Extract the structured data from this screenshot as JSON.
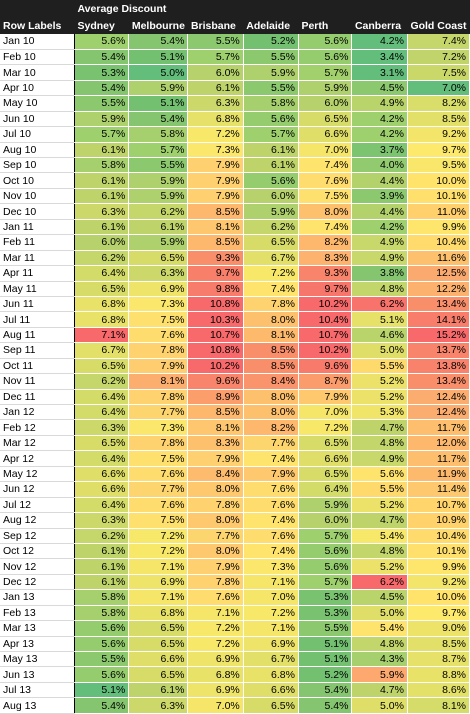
{
  "table": {
    "title": "Average Discount",
    "row_header": "Row Labels",
    "columns": [
      "Sydney",
      "Melbourne",
      "Brisbane",
      "Adelaide",
      "Perth",
      "Canberra",
      "Gold Coast"
    ],
    "rows": [
      {
        "label": "Jan 10",
        "values": [
          "5.6%",
          "5.4%",
          "5.5%",
          "5.2%",
          "5.6%",
          "4.2%",
          "7.4%"
        ],
        "colors": [
          "#9ed06e",
          "#86c56f",
          "#8bc86e",
          "#72c070",
          "#95cc6e",
          "#63be7b",
          "#c5d66a"
        ]
      },
      {
        "label": "Feb 10",
        "values": [
          "5.4%",
          "5.1%",
          "5.7%",
          "5.5%",
          "5.6%",
          "3.4%",
          "7.2%"
        ],
        "colors": [
          "#86c56f",
          "#72c070",
          "#9ed06e",
          "#8bc86e",
          "#95cc6e",
          "#63be7b",
          "#c0d46b"
        ]
      },
      {
        "label": "Mar 10",
        "values": [
          "5.3%",
          "5.0%",
          "6.0%",
          "5.9%",
          "5.7%",
          "3.1%",
          "7.5%"
        ],
        "colors": [
          "#79c270",
          "#63be7b",
          "#b7d26c",
          "#aed06d",
          "#a2d06d",
          "#63be7b",
          "#cad86a"
        ]
      },
      {
        "label": "Apr 10",
        "values": [
          "5.4%",
          "5.9%",
          "6.1%",
          "5.5%",
          "5.9%",
          "4.5%",
          "7.0%"
        ],
        "colors": [
          "#86c56f",
          "#aed06d",
          "#bed46b",
          "#8bc86e",
          "#aed06d",
          "#8bc86e",
          "#63be7b"
        ]
      },
      {
        "label": "May 10",
        "values": [
          "5.5%",
          "5.1%",
          "6.3%",
          "5.8%",
          "6.0%",
          "4.9%",
          "8.2%"
        ],
        "colors": [
          "#8bc86e",
          "#72c070",
          "#ccd96a",
          "#a6cf6d",
          "#b7d26c",
          "#b9d46b",
          "#d9dd69"
        ]
      },
      {
        "label": "Jun 10",
        "values": [
          "5.9%",
          "5.4%",
          "6.8%",
          "5.6%",
          "6.5%",
          "4.2%",
          "8.5%"
        ],
        "colors": [
          "#aed06d",
          "#86c56f",
          "#e6e169",
          "#95cc6e",
          "#d7dc69",
          "#9ed06e",
          "#e2e069"
        ]
      },
      {
        "label": "Jul 10",
        "values": [
          "5.7%",
          "5.8%",
          "7.2%",
          "5.7%",
          "6.6%",
          "4.2%",
          "9.2%"
        ],
        "colors": [
          "#9ed06e",
          "#a6cf6d",
          "#f7e86a",
          "#9ed06e",
          "#dede69",
          "#9ed06e",
          "#f2e56a"
        ]
      },
      {
        "label": "Aug 10",
        "values": [
          "6.1%",
          "5.7%",
          "7.3%",
          "6.1%",
          "7.0%",
          "3.7%",
          "9.7%"
        ],
        "colors": [
          "#bed46b",
          "#9ed06e",
          "#fbe76b",
          "#bed46b",
          "#f5e66a",
          "#7dc470",
          "#fde96b"
        ]
      },
      {
        "label": "Sep 10",
        "values": [
          "5.8%",
          "5.5%",
          "7.9%",
          "6.1%",
          "7.4%",
          "4.0%",
          "9.5%"
        ],
        "colors": [
          "#a6cf6d",
          "#8bc86e",
          "#fed06f",
          "#bed46b",
          "#fee46d",
          "#92cb6f",
          "#f8e76a"
        ]
      },
      {
        "label": "Oct 10",
        "values": [
          "6.1%",
          "5.9%",
          "7.9%",
          "5.6%",
          "7.6%",
          "4.4%",
          "10.0%"
        ],
        "colors": [
          "#bed46b",
          "#aed06d",
          "#fed06f",
          "#95cc6e",
          "#fedc6e",
          "#b3d26c",
          "#ffe36b"
        ]
      },
      {
        "label": "Nov 10",
        "values": [
          "6.1%",
          "5.9%",
          "7.9%",
          "6.0%",
          "7.5%",
          "3.9%",
          "10.1%"
        ],
        "colors": [
          "#bed46b",
          "#aed06d",
          "#fed06f",
          "#b7d26c",
          "#fee06e",
          "#8bc86e",
          "#ffe06c"
        ]
      },
      {
        "label": "Dec 10",
        "values": [
          "6.3%",
          "6.2%",
          "8.5%",
          "5.9%",
          "8.0%",
          "4.4%",
          "11.0%"
        ],
        "colors": [
          "#ccd96a",
          "#c5d66a",
          "#fdb86d",
          "#aed06d",
          "#fdc06d",
          "#b3d26c",
          "#ffd06c"
        ]
      },
      {
        "label": "Jan 11",
        "values": [
          "6.1%",
          "6.1%",
          "8.1%",
          "6.2%",
          "7.4%",
          "4.2%",
          "9.9%"
        ],
        "colors": [
          "#bed46b",
          "#bed46b",
          "#fec66e",
          "#c5d66a",
          "#fee46d",
          "#9ed06e",
          "#fee56b"
        ]
      },
      {
        "label": "Feb 11",
        "values": [
          "6.0%",
          "5.9%",
          "8.5%",
          "6.5%",
          "8.2%",
          "4.9%",
          "10.4%"
        ],
        "colors": [
          "#b7d26c",
          "#aed06d",
          "#fdb86d",
          "#d7dc69",
          "#fdb86d",
          "#c9d86a",
          "#ffda6c"
        ]
      },
      {
        "label": "Mar 11",
        "values": [
          "6.2%",
          "6.5%",
          "9.3%",
          "6.7%",
          "8.3%",
          "4.9%",
          "11.6%"
        ],
        "colors": [
          "#c5d66a",
          "#d7dc69",
          "#f98e6b",
          "#e2e069",
          "#fdb36d",
          "#c9d86a",
          "#fdc06d"
        ]
      },
      {
        "label": "Apr 11",
        "values": [
          "6.4%",
          "6.3%",
          "9.7%",
          "7.2%",
          "9.3%",
          "3.8%",
          "12.5%"
        ],
        "colors": [
          "#d3db69",
          "#ccd96a",
          "#f8806b",
          "#f7e86a",
          "#f8846b",
          "#86c56f",
          "#fbaa6f"
        ]
      },
      {
        "label": "May 11",
        "values": [
          "6.5%",
          "6.9%",
          "9.8%",
          "7.4%",
          "9.7%",
          "4.8%",
          "12.2%"
        ],
        "colors": [
          "#d7dc69",
          "#efe46a",
          "#f77c6b",
          "#fee46d",
          "#f7766b",
          "#c2d66b",
          "#fcb16e"
        ]
      },
      {
        "label": "Jun 11",
        "values": [
          "6.8%",
          "7.3%",
          "10.8%",
          "7.8%",
          "10.2%",
          "6.2%",
          "13.4%"
        ],
        "colors": [
          "#e9e269",
          "#fbe76b",
          "#f8696b",
          "#fdd26f",
          "#f8696b",
          "#f8736b",
          "#f98e6b"
        ]
      },
      {
        "label": "Jul 11",
        "values": [
          "6.8%",
          "7.5%",
          "10.3%",
          "8.0%",
          "10.4%",
          "5.1%",
          "14.1%"
        ],
        "colors": [
          "#e9e269",
          "#fee06e",
          "#f8696b",
          "#fdc06d",
          "#f8696b",
          "#e6e169",
          "#f87e6b"
        ]
      },
      {
        "label": "Aug 11",
        "values": [
          "7.1%",
          "7.6%",
          "10.7%",
          "8.1%",
          "10.7%",
          "4.6%",
          "15.2%"
        ],
        "colors": [
          "#f8696b",
          "#fedc6e",
          "#f8696b",
          "#fdba6d",
          "#f8696b",
          "#b9d46b",
          "#f8696b"
        ]
      },
      {
        "label": "Sep 11",
        "values": [
          "6.7%",
          "7.8%",
          "10.8%",
          "8.5%",
          "10.2%",
          "5.0%",
          "13.7%"
        ],
        "colors": [
          "#e2e069",
          "#fdd26f",
          "#f8696b",
          "#f98e6b",
          "#f8696b",
          "#dede69",
          "#f8846b"
        ]
      },
      {
        "label": "Oct 11",
        "values": [
          "6.5%",
          "7.9%",
          "10.2%",
          "8.5%",
          "9.6%",
          "5.5%",
          "13.8%"
        ],
        "colors": [
          "#d7dc69",
          "#fecd6f",
          "#f8696b",
          "#f98e6b",
          "#f87a6b",
          "#feda6d",
          "#f8826b"
        ]
      },
      {
        "label": "Nov 11",
        "values": [
          "6.2%",
          "8.1%",
          "9.6%",
          "8.4%",
          "8.7%",
          "5.2%",
          "13.4%"
        ],
        "colors": [
          "#c5d66a",
          "#fbae6e",
          "#f8846b",
          "#fa946c",
          "#fb9c6c",
          "#ece269",
          "#f98e6b"
        ]
      },
      {
        "label": "Dec 11",
        "values": [
          "6.4%",
          "7.8%",
          "8.9%",
          "8.0%",
          "7.9%",
          "5.2%",
          "12.4%"
        ],
        "colors": [
          "#d3db69",
          "#fdd26f",
          "#fb9e6c",
          "#fdc06d",
          "#fdc86e",
          "#ece269",
          "#fbac6f"
        ]
      },
      {
        "label": "Jan 12",
        "values": [
          "6.4%",
          "7.7%",
          "8.5%",
          "8.0%",
          "7.0%",
          "5.3%",
          "12.4%"
        ],
        "colors": [
          "#d3db69",
          "#fdd56f",
          "#fdb86d",
          "#fdc06d",
          "#f5e66a",
          "#f0e469",
          "#fbac6f"
        ]
      },
      {
        "label": "Feb 12",
        "values": [
          "6.3%",
          "7.3%",
          "8.1%",
          "8.2%",
          "7.2%",
          "4.7%",
          "11.7%"
        ],
        "colors": [
          "#ccd96a",
          "#fbe76b",
          "#fec66e",
          "#fdb86d",
          "#f7e86a",
          "#bed46b",
          "#fdbe6e"
        ]
      },
      {
        "label": "Mar 12",
        "values": [
          "6.5%",
          "7.8%",
          "8.3%",
          "7.7%",
          "6.5%",
          "4.8%",
          "12.0%"
        ],
        "colors": [
          "#d7dc69",
          "#fdd26f",
          "#fdc06d",
          "#fdd56f",
          "#d7dc69",
          "#c2d66b",
          "#fdb86d"
        ]
      },
      {
        "label": "Apr 12",
        "values": [
          "6.4%",
          "7.5%",
          "7.9%",
          "7.4%",
          "6.6%",
          "4.9%",
          "11.7%"
        ],
        "colors": [
          "#d3db69",
          "#fee06e",
          "#fed06f",
          "#fee46d",
          "#dede69",
          "#c9d86a",
          "#fdbe6e"
        ]
      },
      {
        "label": "May 12",
        "values": [
          "6.6%",
          "7.6%",
          "8.4%",
          "7.9%",
          "6.5%",
          "5.6%",
          "11.9%"
        ],
        "colors": [
          "#dede69",
          "#fedc6e",
          "#fdbc6d",
          "#fdc86e",
          "#d7dc69",
          "#fee46d",
          "#fdba6d"
        ]
      },
      {
        "label": "Jun 12",
        "values": [
          "6.6%",
          "7.7%",
          "8.0%",
          "7.6%",
          "6.4%",
          "5.5%",
          "11.4%"
        ],
        "colors": [
          "#dede69",
          "#fdd56f",
          "#fdc86e",
          "#fedc6e",
          "#d3db69",
          "#feda6d",
          "#fec86e"
        ]
      },
      {
        "label": "Jul 12",
        "values": [
          "6.4%",
          "7.6%",
          "7.8%",
          "7.6%",
          "5.9%",
          "5.2%",
          "10.7%"
        ],
        "colors": [
          "#d3db69",
          "#fedc6e",
          "#fdd26f",
          "#fedc6e",
          "#aed06d",
          "#ece269",
          "#ffd56c"
        ]
      },
      {
        "label": "Aug 12",
        "values": [
          "6.3%",
          "7.5%",
          "8.0%",
          "7.4%",
          "6.0%",
          "4.7%",
          "10.9%"
        ],
        "colors": [
          "#ccd96a",
          "#fee06e",
          "#fdc86e",
          "#fee46d",
          "#b7d26c",
          "#bed46b",
          "#ffd26c"
        ]
      },
      {
        "label": "Sep 12",
        "values": [
          "6.2%",
          "7.2%",
          "7.7%",
          "7.6%",
          "5.7%",
          "5.4%",
          "10.4%"
        ],
        "colors": [
          "#c5d66a",
          "#f7e86a",
          "#fdd56f",
          "#fedc6e",
          "#9ed06e",
          "#f7e86a",
          "#ffda6c"
        ]
      },
      {
        "label": "Oct 12",
        "values": [
          "6.1%",
          "7.2%",
          "8.0%",
          "7.4%",
          "5.6%",
          "4.8%",
          "10.1%"
        ],
        "colors": [
          "#bed46b",
          "#f7e86a",
          "#fdc86e",
          "#fee46d",
          "#95cc6e",
          "#c2d66b",
          "#ffe06c"
        ]
      },
      {
        "label": "Nov 12",
        "values": [
          "6.1%",
          "7.1%",
          "7.9%",
          "7.3%",
          "5.6%",
          "5.2%",
          "9.9%"
        ],
        "colors": [
          "#bed46b",
          "#f5e66a",
          "#fed06f",
          "#fbe76b",
          "#95cc6e",
          "#ece269",
          "#fee56b"
        ]
      },
      {
        "label": "Dec 12",
        "values": [
          "6.1%",
          "6.9%",
          "7.8%",
          "7.1%",
          "5.7%",
          "6.2%",
          "9.2%"
        ],
        "colors": [
          "#bed46b",
          "#efe46a",
          "#fdd26f",
          "#f5e66a",
          "#9ed06e",
          "#f8696b",
          "#f2e56a"
        ]
      },
      {
        "label": "Jan 13",
        "values": [
          "5.8%",
          "7.1%",
          "7.6%",
          "7.0%",
          "5.3%",
          "4.5%",
          "10.0%"
        ],
        "colors": [
          "#a6cf6d",
          "#f5e66a",
          "#fedc6e",
          "#f5e66a",
          "#79c270",
          "#b9d46b",
          "#ffe36b"
        ]
      },
      {
        "label": "Feb 13",
        "values": [
          "5.8%",
          "6.8%",
          "7.1%",
          "7.2%",
          "5.3%",
          "5.0%",
          "9.7%"
        ],
        "colors": [
          "#a6cf6d",
          "#e9e269",
          "#f5e66a",
          "#f7e86a",
          "#79c270",
          "#dede69",
          "#fde96b"
        ]
      },
      {
        "label": "Mar 13",
        "values": [
          "5.6%",
          "6.5%",
          "7.2%",
          "7.1%",
          "5.5%",
          "5.4%",
          "9.0%"
        ],
        "colors": [
          "#95cc6e",
          "#d7dc69",
          "#f7e86a",
          "#f5e66a",
          "#8bc86e",
          "#fee46d",
          "#eee369"
        ]
      },
      {
        "label": "Apr 13",
        "values": [
          "5.6%",
          "6.5%",
          "7.2%",
          "6.9%",
          "5.1%",
          "4.8%",
          "8.5%"
        ],
        "colors": [
          "#95cc6e",
          "#d7dc69",
          "#f7e86a",
          "#efe46a",
          "#72c070",
          "#c2d66b",
          "#e2e069"
        ]
      },
      {
        "label": "May 13",
        "values": [
          "5.5%",
          "6.6%",
          "6.9%",
          "6.7%",
          "5.1%",
          "4.3%",
          "8.7%"
        ],
        "colors": [
          "#8bc86e",
          "#dede69",
          "#efe46a",
          "#e2e069",
          "#72c070",
          "#a6cf6d",
          "#e6e169"
        ]
      },
      {
        "label": "Jun 13",
        "values": [
          "5.6%",
          "6.5%",
          "6.8%",
          "6.8%",
          "5.2%",
          "5.9%",
          "8.8%"
        ],
        "colors": [
          "#95cc6e",
          "#d7dc69",
          "#e9e269",
          "#e9e269",
          "#72c070",
          "#fca86f",
          "#e9e269"
        ]
      },
      {
        "label": "Jul 13",
        "values": [
          "5.1%",
          "6.1%",
          "6.9%",
          "6.6%",
          "5.4%",
          "4.7%",
          "8.6%"
        ],
        "colors": [
          "#63be7b",
          "#bed46b",
          "#efe46a",
          "#dede69",
          "#86c56f",
          "#bed46b",
          "#e4e169"
        ]
      },
      {
        "label": "Aug 13",
        "values": [
          "5.4%",
          "6.3%",
          "7.0%",
          "6.5%",
          "5.4%",
          "5.0%",
          "8.1%"
        ],
        "colors": [
          "#86c56f",
          "#ccd96a",
          "#f5e66a",
          "#d7dc69",
          "#86c56f",
          "#dede69",
          "#d6dc69"
        ]
      }
    ]
  }
}
